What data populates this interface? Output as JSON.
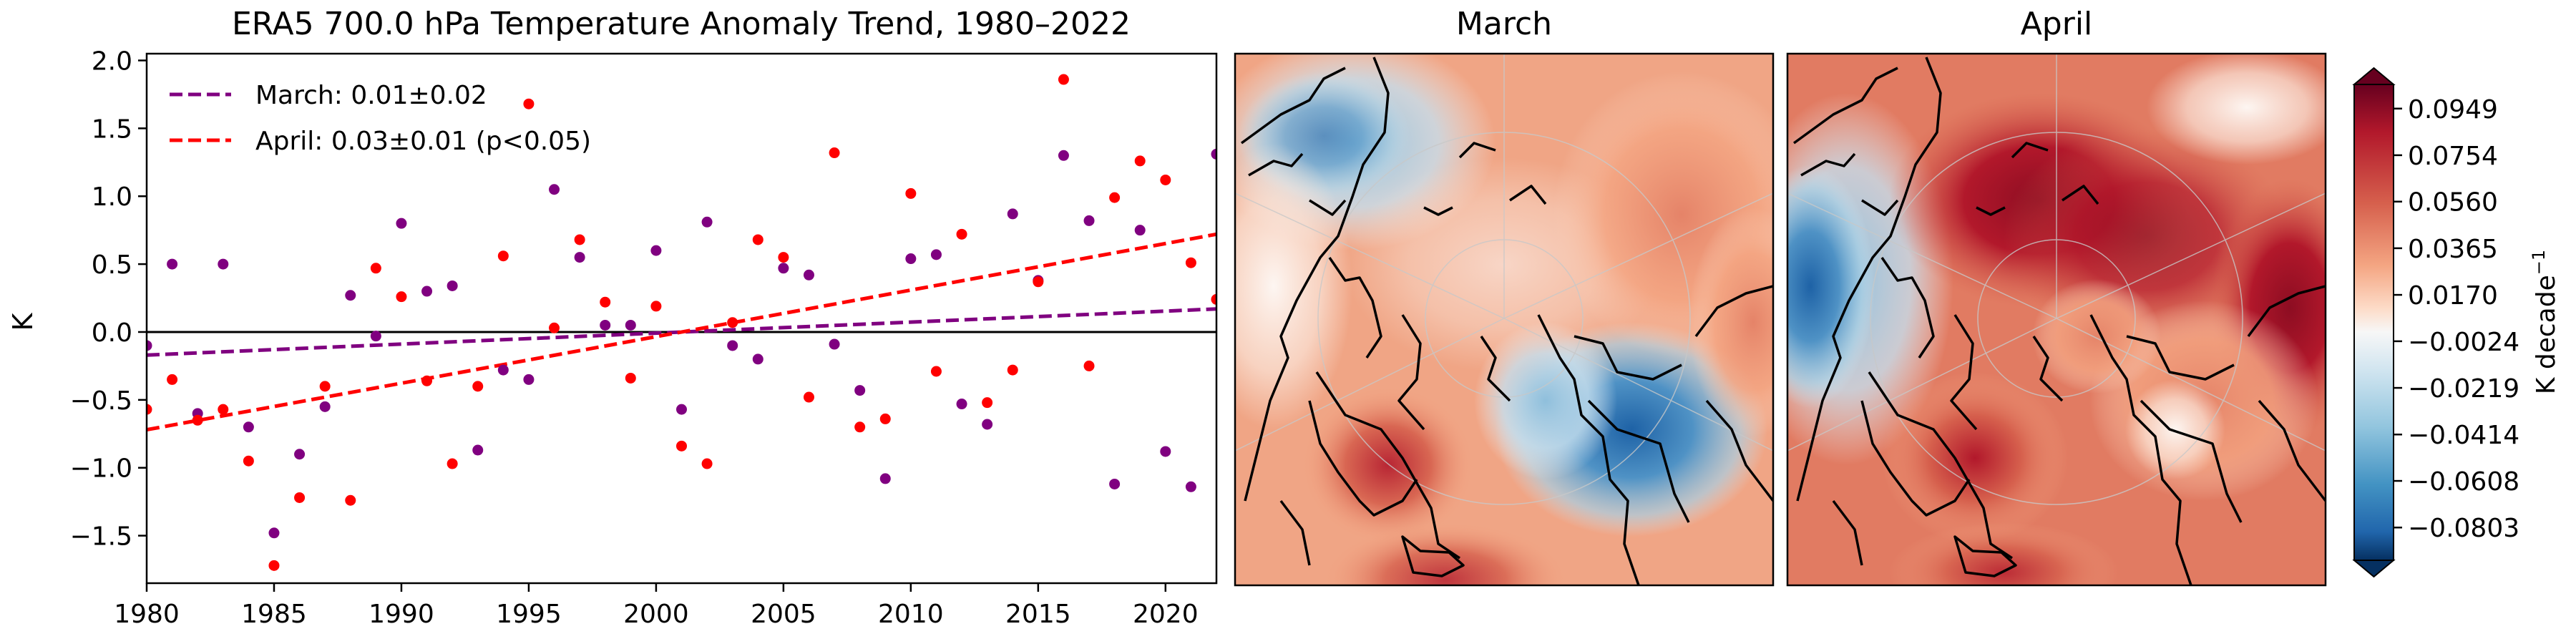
{
  "colors": {
    "march": "#800080",
    "april": "#ff0000",
    "axis": "#000000",
    "coast": "#000000"
  },
  "chart_data": [
    {
      "type": "scatter",
      "title": "ERA5 700.0 hPa Temperature Anomaly Trend, 1980–2022",
      "xlabel": "",
      "ylabel": "K",
      "xlim": [
        1980,
        2022
      ],
      "ylim": [
        -1.85,
        2.05
      ],
      "xticks": [
        1980,
        1985,
        1990,
        1995,
        2000,
        2005,
        2010,
        2015,
        2020
      ],
      "xtick_labels": [
        "1980",
        "1985",
        "1990",
        "1995",
        "2000",
        "2005",
        "2010",
        "2015",
        "2020"
      ],
      "yticks": [
        -1.5,
        -1.0,
        -0.5,
        0.0,
        0.5,
        1.0,
        1.5,
        2.0
      ],
      "ytick_labels": [
        "−1.5",
        "−1.0",
        "−0.5",
        "0.0",
        "0.5",
        "1.0",
        "1.5",
        "2.0"
      ],
      "zero_line": 0,
      "grid": false,
      "legend_position": "top-left",
      "series": [
        {
          "name": "March",
          "legend_label": "March: 0.01±0.02",
          "color": "#800080",
          "x": [
            1980,
            1981,
            1982,
            1983,
            1984,
            1985,
            1986,
            1987,
            1988,
            1989,
            1990,
            1991,
            1992,
            1993,
            1994,
            1995,
            1996,
            1997,
            1998,
            1999,
            2000,
            2001,
            2002,
            2003,
            2004,
            2005,
            2006,
            2007,
            2008,
            2009,
            2010,
            2011,
            2012,
            2013,
            2014,
            2015,
            2016,
            2017,
            2018,
            2019,
            2020,
            2021,
            2022
          ],
          "y": [
            -0.1,
            0.5,
            -0.6,
            0.5,
            -0.7,
            -1.48,
            -0.9,
            -0.55,
            0.27,
            -0.03,
            0.8,
            0.3,
            0.34,
            -0.87,
            -0.28,
            -0.35,
            1.05,
            0.55,
            0.05,
            0.05,
            0.6,
            -0.57,
            0.81,
            -0.1,
            -0.2,
            0.47,
            0.42,
            -0.09,
            -0.43,
            -1.08,
            0.54,
            0.57,
            -0.53,
            -0.68,
            0.87,
            0.38,
            1.3,
            0.82,
            -1.12,
            0.75,
            -0.88,
            -1.14,
            1.31
          ],
          "trend": {
            "start": -0.17,
            "end": 0.17
          }
        },
        {
          "name": "April",
          "legend_label": "April: 0.03±0.01 (p<0.05)",
          "color": "#ff0000",
          "x": [
            1980,
            1981,
            1982,
            1983,
            1984,
            1985,
            1986,
            1987,
            1988,
            1989,
            1990,
            1991,
            1992,
            1993,
            1994,
            1995,
            1996,
            1997,
            1998,
            1999,
            2000,
            2001,
            2002,
            2003,
            2004,
            2005,
            2006,
            2007,
            2008,
            2009,
            2010,
            2011,
            2012,
            2013,
            2014,
            2015,
            2016,
            2017,
            2018,
            2019,
            2020,
            2021,
            2022
          ],
          "y": [
            -0.57,
            -0.35,
            -0.65,
            -0.57,
            -0.95,
            -1.72,
            -1.22,
            -0.4,
            -1.24,
            0.47,
            0.26,
            -0.36,
            -0.97,
            -0.4,
            0.56,
            1.68,
            0.03,
            0.68,
            0.22,
            -0.34,
            0.19,
            -0.84,
            -0.97,
            0.07,
            0.68,
            0.55,
            -0.48,
            1.32,
            -0.7,
            -0.64,
            1.02,
            -0.29,
            0.72,
            -0.52,
            -0.28,
            0.37,
            1.86,
            -0.25,
            0.99,
            1.26,
            1.12,
            0.51,
            0.24
          ],
          "trend": {
            "start": -0.72,
            "end": 0.72
          }
        }
      ]
    },
    {
      "type": "heatmap",
      "title": "March",
      "projection": "north-polar-stereographic"
    },
    {
      "type": "heatmap",
      "title": "April",
      "projection": "north-polar-stereographic"
    },
    {
      "type": "colorbar",
      "label": "K decade",
      "label_exponent": "−1",
      "ticks": [
        0.0949,
        0.0754,
        0.056,
        0.0365,
        0.017,
        -0.0024,
        -0.0219,
        -0.0414,
        -0.0608,
        -0.0803
      ],
      "tick_labels": [
        "0.0949",
        "0.0754",
        "0.0560",
        "0.0365",
        "0.0170",
        "−0.0024",
        "−0.0219",
        "−0.0414",
        "−0.0608",
        "−0.0803"
      ],
      "extend": "both",
      "colormap": "RdBu_r"
    }
  ]
}
